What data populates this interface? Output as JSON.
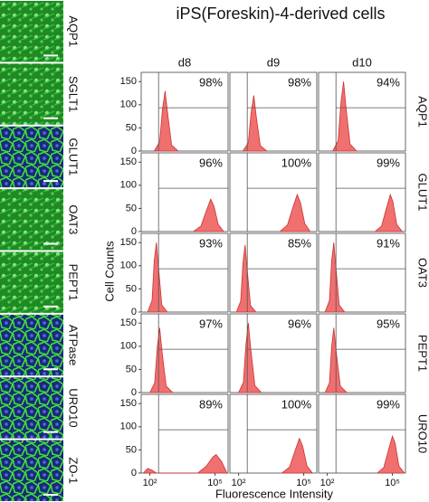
{
  "figure": {
    "title": "iPS(Foreskin)-4-derived cells",
    "columns": [
      "d8",
      "d9",
      "d10"
    ],
    "rows": [
      "AQP1",
      "GLUT1",
      "OAT3",
      "PEPT1",
      "URO10"
    ],
    "y_label": "Cell Counts",
    "x_label": "Fluorescence Intensity",
    "image_labels": [
      "AQP1",
      "SGLT1",
      "GLUT1",
      "OAT3",
      "PEPT1",
      "ATPase",
      "URO10",
      "ZO-1"
    ]
  },
  "chart_data": [
    {
      "type": "area",
      "color": "#f07070",
      "annotation": "98%",
      "x": [
        2.2,
        2.45,
        2.58,
        2.7,
        2.82,
        3.0,
        3.3
      ],
      "values": [
        0,
        20,
        90,
        130,
        80,
        13,
        0
      ],
      "xlim": [
        1.6,
        5.6
      ],
      "ylim": [
        0,
        170
      ],
      "yticks": [
        0,
        50,
        100,
        150
      ]
    },
    {
      "type": "area",
      "color": "#f07070",
      "annotation": "98%",
      "x": [
        2.2,
        2.45,
        2.58,
        2.7,
        2.82,
        3.0,
        3.3
      ],
      "values": [
        0,
        18,
        84,
        120,
        72,
        12,
        0
      ],
      "xlim": [
        1.6,
        5.6
      ],
      "ylim": [
        0,
        170
      ]
    },
    {
      "type": "area",
      "color": "#f07070",
      "annotation": "94%",
      "x": [
        2.25,
        2.5,
        2.63,
        2.75,
        2.87,
        3.05,
        3.35
      ],
      "values": [
        0,
        22,
        105,
        150,
        90,
        15,
        0
      ],
      "xlim": [
        1.6,
        5.6
      ],
      "ylim": [
        0,
        170
      ]
    },
    {
      "type": "area",
      "color": "#f07070",
      "annotation": "96%",
      "x": [
        4.0,
        4.35,
        4.6,
        4.8,
        4.95,
        5.15,
        5.4
      ],
      "values": [
        0,
        12,
        45,
        70,
        55,
        15,
        0
      ],
      "xlim": [
        1.6,
        5.6
      ],
      "ylim": [
        0,
        170
      ],
      "yticks": [
        0,
        50,
        100,
        150
      ]
    },
    {
      "type": "area",
      "color": "#f07070",
      "annotation": "100%",
      "x": [
        3.9,
        4.25,
        4.5,
        4.7,
        4.85,
        5.05,
        5.3
      ],
      "values": [
        0,
        14,
        52,
        80,
        62,
        17,
        0
      ],
      "xlim": [
        1.6,
        5.6
      ],
      "ylim": [
        0,
        170
      ]
    },
    {
      "type": "area",
      "color": "#f07070",
      "annotation": "99%",
      "x": [
        4.2,
        4.5,
        4.72,
        4.9,
        5.02,
        5.2,
        5.45
      ],
      "values": [
        0,
        12,
        50,
        80,
        65,
        15,
        0
      ],
      "xlim": [
        1.6,
        5.6
      ],
      "ylim": [
        0,
        170
      ]
    },
    {
      "type": "area",
      "color": "#f07070",
      "annotation": "93%",
      "x": [
        1.9,
        2.1,
        2.2,
        2.3,
        2.4,
        2.55,
        2.8
      ],
      "values": [
        0,
        25,
        110,
        150,
        95,
        15,
        0
      ],
      "xlim": [
        1.6,
        5.6
      ],
      "ylim": [
        0,
        170
      ],
      "yticks": [
        0,
        50,
        100,
        150
      ]
    },
    {
      "type": "area",
      "color": "#f07070",
      "annotation": "85%",
      "x": [
        1.9,
        2.1,
        2.2,
        2.3,
        2.4,
        2.55,
        2.8
      ],
      "values": [
        0,
        24,
        105,
        145,
        90,
        14,
        0
      ],
      "xlim": [
        1.6,
        5.6
      ],
      "ylim": [
        0,
        170
      ]
    },
    {
      "type": "area",
      "color": "#f07070",
      "annotation": "91%",
      "x": [
        1.9,
        2.1,
        2.2,
        2.3,
        2.4,
        2.55,
        2.8
      ],
      "values": [
        0,
        25,
        110,
        150,
        95,
        15,
        0
      ],
      "xlim": [
        1.6,
        5.6
      ],
      "ylim": [
        0,
        170
      ]
    },
    {
      "type": "area",
      "color": "#f07070",
      "annotation": "97%",
      "x": [
        2.0,
        2.22,
        2.34,
        2.45,
        2.57,
        2.75,
        3.05
      ],
      "values": [
        0,
        21,
        98,
        140,
        84,
        14,
        0
      ],
      "xlim": [
        1.6,
        5.6
      ],
      "ylim": [
        0,
        170
      ],
      "yticks": [
        0,
        50,
        100,
        150
      ]
    },
    {
      "type": "area",
      "color": "#f07070",
      "annotation": "96%",
      "x": [
        2.0,
        2.22,
        2.34,
        2.45,
        2.57,
        2.75,
        3.05
      ],
      "values": [
        0,
        22,
        105,
        150,
        90,
        15,
        0
      ],
      "xlim": [
        1.6,
        5.6
      ],
      "ylim": [
        0,
        170
      ]
    },
    {
      "type": "area",
      "color": "#f07070",
      "annotation": "95%",
      "x": [
        1.9,
        2.1,
        2.2,
        2.3,
        2.42,
        2.6,
        2.9
      ],
      "values": [
        0,
        21,
        98,
        140,
        84,
        14,
        0
      ],
      "xlim": [
        1.6,
        5.6
      ],
      "ylim": [
        0,
        170
      ]
    },
    {
      "type": "area",
      "color": "#f07070",
      "annotation": "89%",
      "x": [
        1.7,
        1.9,
        2.1,
        2.3,
        4.2,
        4.6,
        4.9,
        5.05,
        5.3,
        5.55
      ],
      "values": [
        0,
        10,
        6,
        0,
        0,
        15,
        35,
        40,
        25,
        0
      ],
      "xlim": [
        1.6,
        5.6
      ],
      "ylim": [
        0,
        170
      ],
      "yticks": [
        0,
        50,
        100,
        150
      ],
      "xticks": [
        {
          "value": 2,
          "label": "10²"
        },
        {
          "value": 5,
          "label": "10⁵"
        }
      ]
    },
    {
      "type": "area",
      "color": "#f07070",
      "annotation": "100%",
      "x": [
        4.0,
        4.35,
        4.6,
        4.8,
        4.95,
        5.15,
        5.4
      ],
      "values": [
        0,
        13,
        48,
        75,
        58,
        15,
        0
      ],
      "xlim": [
        1.6,
        5.6
      ],
      "ylim": [
        0,
        170
      ],
      "xticks": [
        {
          "value": 2,
          "label": "10²"
        },
        {
          "value": 5,
          "label": "10⁵"
        }
      ]
    },
    {
      "type": "area",
      "color": "#f07070",
      "annotation": "99%",
      "x": [
        4.3,
        4.6,
        4.82,
        5.0,
        5.12,
        5.3,
        5.55
      ],
      "values": [
        0,
        12,
        50,
        80,
        65,
        15,
        0
      ],
      "xlim": [
        1.6,
        5.6
      ],
      "ylim": [
        0,
        170
      ],
      "xticks": [
        {
          "value": 2,
          "label": "10²"
        },
        {
          "value": 5,
          "label": "10⁵"
        }
      ]
    }
  ]
}
